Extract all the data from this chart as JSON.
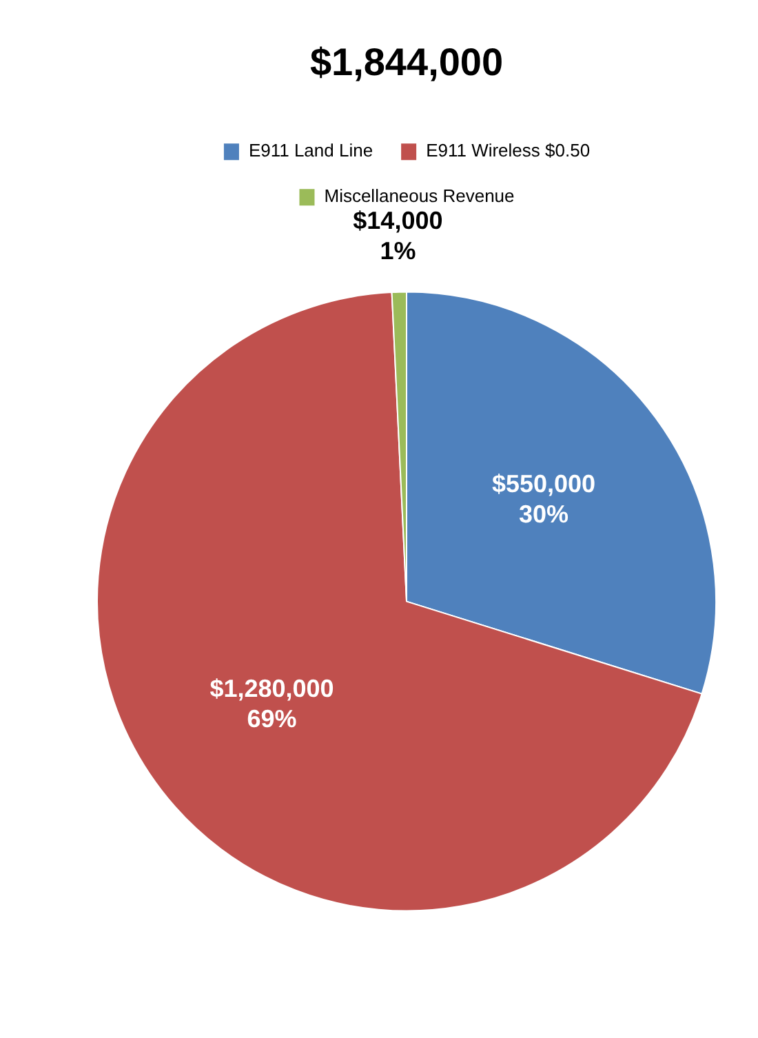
{
  "chart_data": {
    "type": "pie",
    "title": "$1,844,000",
    "categories": [
      "E911 Land Line",
      "E911 Wireless $0.50",
      "Miscellaneous Revenue"
    ],
    "values": [
      550000,
      1280000,
      14000
    ],
    "colors": [
      "#4f81bd",
      "#c0504d",
      "#9bbb59"
    ],
    "value_labels": [
      "$550,000\n30%",
      "$1,280,000\n69%",
      "$14,000\n1%"
    ],
    "legend": "top"
  }
}
